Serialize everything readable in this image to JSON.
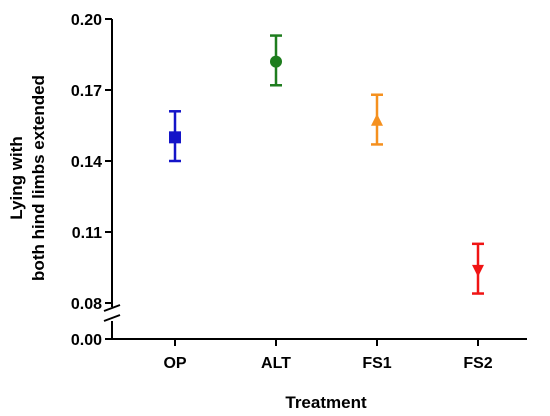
{
  "chart_data": {
    "type": "scatter",
    "xlabel": "Treatment",
    "ylabel_lines": [
      "Lying with",
      "both hind limbs extended"
    ],
    "categories": [
      "OP",
      "ALT",
      "FS1",
      "FS2"
    ],
    "series": [
      {
        "category": "OP",
        "mean": 0.15,
        "lower": 0.14,
        "upper": 0.161,
        "marker": "square",
        "color": "#1414c8"
      },
      {
        "category": "ALT",
        "mean": 0.182,
        "lower": 0.172,
        "upper": 0.193,
        "marker": "circle",
        "color": "#1e7d1e"
      },
      {
        "category": "FS1",
        "mean": 0.157,
        "lower": 0.147,
        "upper": 0.168,
        "marker": "triangle-up",
        "color": "#f5901e"
      },
      {
        "category": "FS2",
        "mean": 0.094,
        "lower": 0.084,
        "upper": 0.105,
        "marker": "triangle-down",
        "color": "#f01414"
      }
    ],
    "upper_axis": {
      "ylim": [
        0.08,
        0.2
      ],
      "ticks": [
        0.08,
        0.11,
        0.14,
        0.17,
        0.2
      ],
      "tick_labels": [
        "0.08",
        "0.11",
        "0.14",
        "0.17",
        "0.20"
      ]
    },
    "lower_axis": {
      "ticks": [
        0.0
      ],
      "tick_labels": [
        "0.00"
      ]
    },
    "axis_break": true,
    "grid": false,
    "legend": false
  }
}
